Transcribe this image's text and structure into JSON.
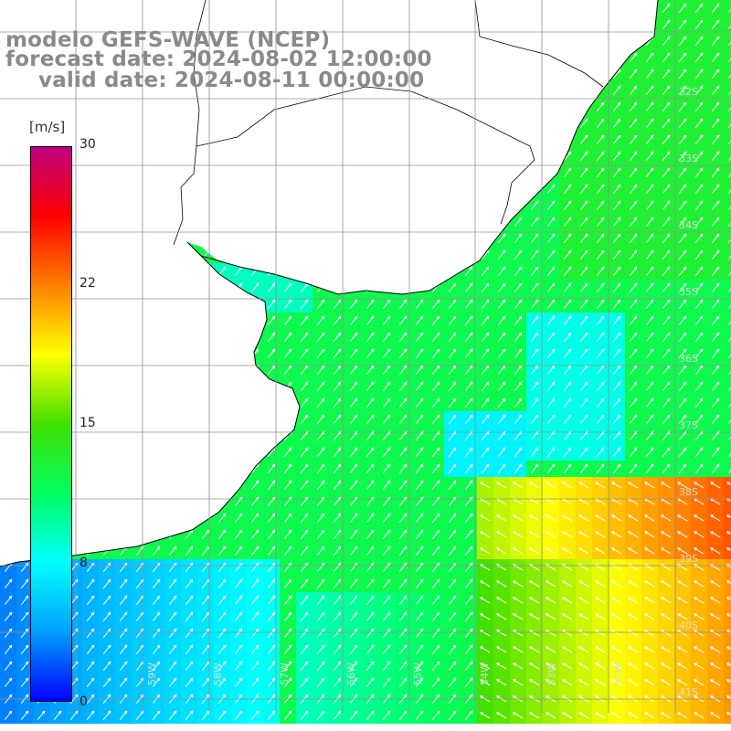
{
  "title": {
    "line1": "modelo GEFS-WAVE (NCEP)",
    "line2": "forecast date: 2024-08-02 12:00:00",
    "line3": "valid date: 2024-08-11 00:00:00"
  },
  "colorbar": {
    "units": "[m/s]",
    "ticks": [
      "30",
      "22",
      "15",
      "8",
      "0"
    ],
    "tick_values": [
      30,
      22,
      15,
      8,
      0
    ],
    "stops": [
      "#0000ff",
      "#00a0ff",
      "#00ffff",
      "#00ff60",
      "#40e000",
      "#ffff00",
      "#ff8000",
      "#ff0000",
      "#c00080"
    ]
  },
  "lat_labels": [
    "32S",
    "33S",
    "34S",
    "35S",
    "36S",
    "37S",
    "38S",
    "39S",
    "40S",
    "41S"
  ],
  "lon_labels": [
    "59W",
    "58W",
    "57W",
    "56W",
    "55W",
    "54W",
    "53W",
    "52W"
  ],
  "colors": {
    "land": "#ffffff",
    "coast": "#000000",
    "grid": "#909090",
    "arrows": "#ffffff"
  }
}
